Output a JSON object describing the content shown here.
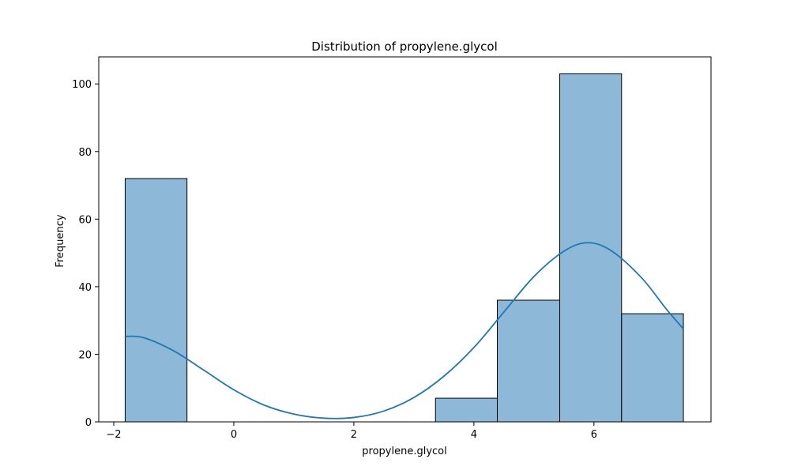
{
  "chart_data": {
    "type": "bar",
    "title": "Distribution of propylene.glycol",
    "xlabel": "propylene.glycol",
    "ylabel": "Frequency",
    "xlim": [
      -2.25,
      7.95
    ],
    "ylim": [
      0,
      108
    ],
    "x_ticks": [
      -2,
      0,
      2,
      4,
      6
    ],
    "x_tick_labels": [
      "−2",
      "0",
      "2",
      "4",
      "6"
    ],
    "y_ticks": [
      0,
      20,
      40,
      60,
      80,
      100
    ],
    "y_tick_labels": [
      "0",
      "20",
      "40",
      "60",
      "80",
      "100"
    ],
    "bins": [
      {
        "x0": -1.81,
        "x1": -0.78,
        "count": 72
      },
      {
        "x0": -0.78,
        "x1": 0.26,
        "count": 0
      },
      {
        "x0": 0.26,
        "x1": 1.29,
        "count": 0
      },
      {
        "x0": 1.29,
        "x1": 2.33,
        "count": 0
      },
      {
        "x0": 2.33,
        "x1": 3.36,
        "count": 0
      },
      {
        "x0": 3.36,
        "x1": 4.39,
        "count": 7
      },
      {
        "x0": 4.39,
        "x1": 5.43,
        "count": 36
      },
      {
        "x0": 5.43,
        "x1": 6.46,
        "count": 103
      },
      {
        "x0": 6.46,
        "x1": 7.49,
        "count": 32
      }
    ],
    "kde": {
      "x": [
        -1.81,
        -1.5,
        -1.0,
        -0.5,
        0.0,
        0.5,
        1.0,
        1.5,
        2.0,
        2.5,
        3.0,
        3.5,
        4.0,
        4.5,
        5.0,
        5.5,
        5.9,
        6.3,
        6.8,
        7.2,
        7.49
      ],
      "y": [
        25.3,
        24.9,
        21.0,
        15.3,
        9.5,
        5.0,
        2.3,
        1.1,
        1.3,
        3.2,
        7.2,
        13.5,
        22.0,
        32.5,
        43.0,
        50.5,
        53.0,
        50.5,
        42.5,
        33.5,
        27.5
      ]
    },
    "colors": {
      "bar_fill": "#8db8d8",
      "bar_edge": "#000000",
      "kde_line": "#1f77b4"
    },
    "grid": false,
    "legend": "none"
  }
}
